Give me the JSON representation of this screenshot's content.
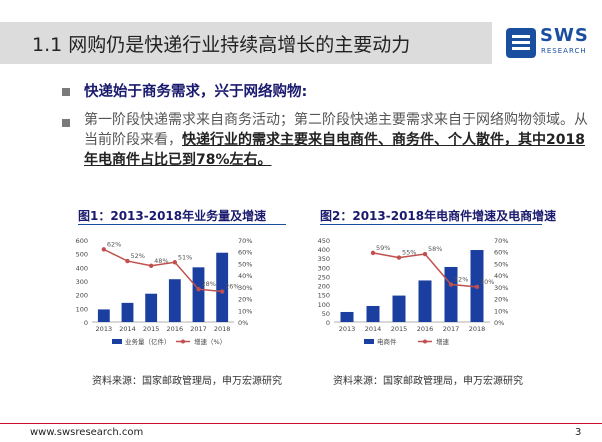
{
  "slide": {
    "title": "1.1 网购仍是快递行业持续高增长的主要动力",
    "logo_name": "SWS",
    "logo_sub": "RESEARCH",
    "bullet1": "快递始于商务需求，兴于网络购物:",
    "bullet2_plain": "第一阶段快递需求来自商务活动；第二阶段快递主要需求来自于网络购物领域。从当前阶段来看，",
    "bullet2_highlight": "快递行业的需求主要来自电商件、商务件、个人散件，其中2018年电商件占比已到78%左右。",
    "fig1_title": "图1：2013-2018年业务量及增速",
    "fig2_title": "图2：2013-2018年电商件增速及电商增速",
    "fig1_source": "资料来源：国家邮政管理局，申万宏源研究",
    "fig2_source": "资料来源：国家邮政管理局，申万宏源研究",
    "footer_url": "www.swsresearch.com",
    "page_number": "3"
  },
  "colors": {
    "accent_red": "#c8102e",
    "bar_blue": "#1a3fa0",
    "line_red": "#c0504d",
    "brand_blue": "#1a4fa0"
  },
  "chart_data": [
    {
      "type": "bar",
      "categories": [
        "2013",
        "2014",
        "2015",
        "2016",
        "2017",
        "2018"
      ],
      "series": [
        {
          "name": "业务量（亿件）",
          "type": "bar",
          "axis": "left",
          "values": [
            92,
            140,
            207,
            313,
            400,
            507
          ]
        },
        {
          "name": "增速（%）",
          "type": "line",
          "axis": "right",
          "values": [
            62,
            52,
            48,
            51,
            28,
            26
          ]
        }
      ],
      "data_labels": [
        "62%",
        "52%",
        "48%",
        "51%",
        "28%",
        "26%"
      ],
      "y_left": {
        "lim": [
          0,
          600
        ],
        "ticks": [
          "0",
          "100",
          "200",
          "300",
          "400",
          "500",
          "600"
        ]
      },
      "y_right": {
        "lim": [
          0,
          70
        ],
        "ticks": [
          "0%",
          "10%",
          "20%",
          "30%",
          "40%",
          "50%",
          "60%",
          "70%"
        ]
      }
    },
    {
      "type": "bar",
      "categories": [
        "2013",
        "2014",
        "2015",
        "2016",
        "2017",
        "2018"
      ],
      "series": [
        {
          "name": "电商件",
          "type": "bar",
          "axis": "left",
          "values": [
            55,
            88,
            145,
            228,
            302,
            395
          ]
        },
        {
          "name": "增速",
          "type": "line",
          "axis": "right",
          "values": [
            null,
            59,
            55,
            58,
            32,
            30
          ]
        }
      ],
      "data_labels": [
        "",
        "59%",
        "55%",
        "58%",
        "32%",
        "30%"
      ],
      "y_left": {
        "lim": [
          0,
          450
        ],
        "ticks": [
          "0",
          "50",
          "100",
          "150",
          "200",
          "250",
          "300",
          "350",
          "400",
          "450"
        ]
      },
      "y_right": {
        "lim": [
          0,
          70
        ],
        "ticks": [
          "0%",
          "10%",
          "20%",
          "30%",
          "40%",
          "50%",
          "60%",
          "70%"
        ]
      }
    }
  ]
}
